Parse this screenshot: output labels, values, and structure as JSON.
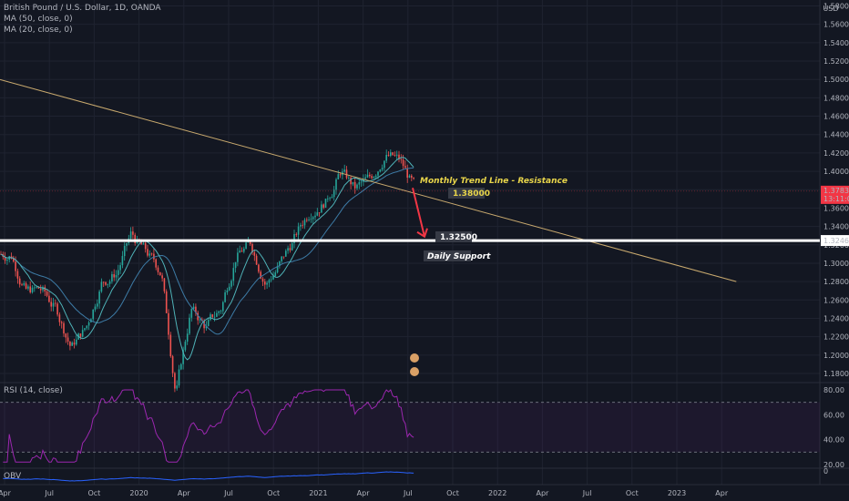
{
  "header": {
    "symbol_line": "British Pound / U.S. Dollar, 1D, OANDA",
    "ma50_line": "MA (50, close, 0)",
    "ma20_line": "MA (20, close, 0)",
    "currency": "USD"
  },
  "chart_data": {
    "type": "line",
    "symbol": "British Pound / U.S. Dollar",
    "timeframe": "1D",
    "ylim": [
      1.17,
      1.59
    ],
    "y_ticks": [
      "1.58000",
      "1.56000",
      "1.54000",
      "1.52000",
      "1.50000",
      "1.48000",
      "1.46000",
      "1.44000",
      "1.42000",
      "1.40000",
      "1.38000",
      "1.36000",
      "1.34000",
      "1.32000",
      "1.30000",
      "1.28000",
      "1.26000",
      "1.24000",
      "1.22000",
      "1.20000",
      "1.18000"
    ],
    "x_ticks": [
      "Apr",
      "Jul",
      "Oct",
      "2020",
      "Apr",
      "Jul",
      "Oct",
      "2021",
      "Apr",
      "Jul",
      "Oct",
      "2022",
      "Apr",
      "Jul",
      "Oct",
      "2023",
      "Apr"
    ],
    "price_path": [
      [
        "2019-04",
        1.31
      ],
      [
        "2019-05",
        1.27
      ],
      [
        "2019-06",
        1.27
      ],
      [
        "2019-07",
        1.25
      ],
      [
        "2019-08",
        1.21
      ],
      [
        "2019-09",
        1.23
      ],
      [
        "2019-10",
        1.28
      ],
      [
        "2019-11",
        1.29
      ],
      [
        "2019-12",
        1.33
      ],
      [
        "2020-01",
        1.31
      ],
      [
        "2020-02",
        1.29
      ],
      [
        "2020-03",
        1.16
      ],
      [
        "2020-04",
        1.25
      ],
      [
        "2020-05",
        1.23
      ],
      [
        "2020-06",
        1.25
      ],
      [
        "2020-07",
        1.31
      ],
      [
        "2020-08",
        1.32
      ],
      [
        "2020-09",
        1.28
      ],
      [
        "2020-10",
        1.3
      ],
      [
        "2020-11",
        1.33
      ],
      [
        "2020-12",
        1.36
      ],
      [
        "2021-01",
        1.37
      ],
      [
        "2021-02",
        1.4
      ],
      [
        "2021-03",
        1.38
      ],
      [
        "2021-04",
        1.39
      ],
      [
        "2021-05",
        1.42
      ],
      [
        "2021-06",
        1.41
      ],
      [
        "2021-07",
        1.38
      ]
    ],
    "series": [
      {
        "name": "MA (50, close, 0)",
        "color": "#3d7ba6"
      },
      {
        "name": "MA (20, close, 0)",
        "color": "#4fb3b8"
      }
    ],
    "current_price": {
      "value": "1.37839",
      "countdown": "13:11:02",
      "color": "#f23645"
    },
    "daily_support": {
      "value": "1.32466",
      "label": "Daily Support",
      "color": "#ffffff"
    },
    "trendline": {
      "label": "Monthly Trend Line - Resistance",
      "color": "#c8a96e",
      "from": [
        "2019-03-22",
        1.5
      ],
      "to": [
        "2023-05-01",
        1.28
      ]
    },
    "annotations": [
      {
        "text": "Monthly Trend Line - Resistance"
      },
      {
        "text": "1.38000"
      },
      {
        "text": "1.32500"
      },
      {
        "text": "Daily Support"
      }
    ],
    "projection_arrow": {
      "from": 1.38,
      "to": 1.325,
      "color": "#f23645"
    }
  },
  "rsi": {
    "label": "RSI (14, close)",
    "ylim": [
      20,
      80
    ],
    "ticks": [
      "80.00",
      "60.00",
      "40.00",
      "20.00"
    ],
    "bands": [
      70,
      30
    ],
    "color": "#9c27b0"
  },
  "obv": {
    "label": "OBV",
    "tick": "0"
  }
}
